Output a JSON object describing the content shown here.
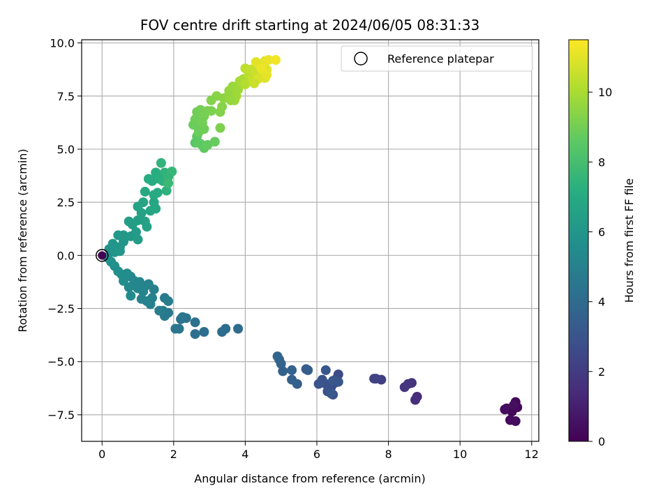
{
  "chart_data": {
    "type": "scatter",
    "title": "FOV centre drift starting at 2024/06/05 08:31:33",
    "xlabel": "Angular distance from reference (arcmin)",
    "ylabel": "Rotation from reference (arcmin)",
    "xlim": [
      -0.57,
      12.2
    ],
    "ylim": [
      -8.75,
      10.15
    ],
    "xticks": [
      0,
      2,
      4,
      6,
      8,
      10,
      12
    ],
    "xtick_labels": [
      "0",
      "2",
      "4",
      "6",
      "8",
      "10",
      "12"
    ],
    "yticks": [
      -7.5,
      -5.0,
      -2.5,
      0.0,
      2.5,
      5.0,
      7.5,
      10.0
    ],
    "ytick_labels": [
      "−7.5",
      "−5.0",
      "−2.5",
      "0.0",
      "2.5",
      "5.0",
      "7.5",
      "10.0"
    ],
    "grid": true,
    "legend": {
      "position": "top-right",
      "entries": [
        "Reference platepar"
      ]
    },
    "colorbar": {
      "label": "Hours from first FF file",
      "colormap": "viridis",
      "range": [
        0,
        11.5
      ],
      "ticks": [
        0,
        2,
        4,
        6,
        8,
        10
      ],
      "tick_labels": [
        "0",
        "2",
        "4",
        "6",
        "8",
        "10"
      ]
    },
    "reference_point": {
      "x": 0,
      "y": 0,
      "label": "Reference platepar"
    },
    "points": [
      [
        11.3,
        -7.2,
        0.1
      ],
      [
        11.45,
        -7.35,
        0.15
      ],
      [
        11.55,
        -6.9,
        0.2
      ],
      [
        11.6,
        -7.15,
        0.25
      ],
      [
        11.4,
        -7.75,
        0.3
      ],
      [
        11.55,
        -7.8,
        0.35
      ],
      [
        11.25,
        -7.25,
        0.4
      ],
      [
        11.5,
        -7.05,
        0.45
      ],
      [
        8.8,
        -6.65,
        1.4
      ],
      [
        8.75,
        -6.8,
        1.5
      ],
      [
        8.65,
        -6.0,
        1.6
      ],
      [
        8.55,
        -6.05,
        1.7
      ],
      [
        8.45,
        -6.2,
        1.8
      ],
      [
        7.8,
        -5.85,
        2.1
      ],
      [
        7.65,
        -5.8,
        2.2
      ],
      [
        7.6,
        -5.8,
        2.25
      ],
      [
        6.6,
        -5.6,
        2.6
      ],
      [
        6.55,
        -5.8,
        2.65
      ],
      [
        6.5,
        -6.0,
        2.7
      ],
      [
        6.4,
        -6.2,
        2.75
      ],
      [
        6.45,
        -6.55,
        2.8
      ],
      [
        6.3,
        -6.4,
        2.85
      ],
      [
        6.25,
        -6.05,
        2.9
      ],
      [
        6.15,
        -5.85,
        2.95
      ],
      [
        6.05,
        -6.05,
        3.0
      ],
      [
        6.25,
        -5.4,
        3.05
      ],
      [
        6.6,
        -5.95,
        3.1
      ],
      [
        6.45,
        -5.9,
        3.15
      ],
      [
        6.4,
        -6.5,
        3.2
      ],
      [
        5.7,
        -5.35,
        3.35
      ],
      [
        5.75,
        -5.4,
        3.4
      ],
      [
        5.45,
        -6.05,
        3.45
      ],
      [
        5.3,
        -5.85,
        3.5
      ],
      [
        5.05,
        -5.45,
        3.55
      ],
      [
        5.3,
        -5.4,
        3.6
      ],
      [
        5.0,
        -5.1,
        3.65
      ],
      [
        4.95,
        -4.9,
        3.7
      ],
      [
        4.9,
        -4.75,
        3.75
      ],
      [
        3.8,
        -3.45,
        4.0
      ],
      [
        3.45,
        -3.45,
        4.05
      ],
      [
        3.35,
        -3.6,
        4.1
      ],
      [
        2.85,
        -3.6,
        4.15
      ],
      [
        2.6,
        -3.7,
        4.2
      ],
      [
        2.6,
        -3.15,
        4.25
      ],
      [
        2.35,
        -2.95,
        4.3
      ],
      [
        2.2,
        -3.0,
        4.35
      ],
      [
        2.15,
        -3.45,
        4.4
      ],
      [
        2.05,
        -3.45,
        4.45
      ],
      [
        2.25,
        -2.9,
        4.5
      ],
      [
        1.85,
        -2.7,
        4.6
      ],
      [
        1.75,
        -2.85,
        4.65
      ],
      [
        1.7,
        -2.6,
        4.7
      ],
      [
        1.75,
        -2.0,
        4.75
      ],
      [
        1.85,
        -2.15,
        4.8
      ],
      [
        1.6,
        -2.6,
        4.85
      ],
      [
        1.45,
        -1.6,
        4.9
      ],
      [
        1.4,
        -2.0,
        4.95
      ],
      [
        1.35,
        -2.3,
        5.0
      ],
      [
        1.25,
        -2.15,
        5.05
      ],
      [
        1.1,
        -2.05,
        5.1
      ],
      [
        1.15,
        -1.7,
        5.15
      ],
      [
        1.0,
        -1.55,
        5.2
      ],
      [
        0.95,
        -1.4,
        5.25
      ],
      [
        0.9,
        -1.2,
        5.3
      ],
      [
        0.8,
        -1.0,
        5.35
      ],
      [
        0.75,
        -1.5,
        5.4
      ],
      [
        0.8,
        -1.9,
        5.45
      ],
      [
        0.7,
        -0.85,
        5.5
      ],
      [
        0.6,
        -1.2,
        5.55
      ],
      [
        0.55,
        -0.9,
        5.6
      ],
      [
        0.45,
        -0.75,
        5.65
      ],
      [
        0.35,
        -0.5,
        5.7
      ],
      [
        0.25,
        -0.3,
        5.75
      ],
      [
        0.15,
        -0.1,
        5.8
      ],
      [
        1.05,
        -1.25,
        5.25
      ],
      [
        1.2,
        -1.45,
        5.15
      ],
      [
        1.3,
        -1.35,
        5.1
      ],
      [
        0.2,
        0.3,
        5.85
      ],
      [
        0.35,
        0.15,
        5.9
      ],
      [
        0.5,
        0.4,
        5.95
      ],
      [
        0.6,
        0.65,
        6.0
      ],
      [
        0.45,
        0.95,
        6.05
      ],
      [
        0.6,
        0.95,
        6.1
      ],
      [
        0.5,
        0.2,
        6.05
      ],
      [
        0.3,
        0.55,
        6.0
      ],
      [
        0.8,
        0.9,
        6.2
      ],
      [
        0.95,
        1.1,
        6.25
      ],
      [
        1.0,
        0.75,
        6.3
      ],
      [
        0.85,
        1.45,
        6.35
      ],
      [
        0.75,
        1.6,
        6.4
      ],
      [
        1.0,
        1.65,
        6.45
      ],
      [
        1.2,
        1.6,
        6.5
      ],
      [
        1.25,
        1.35,
        6.55
      ],
      [
        1.1,
        2.0,
        6.6
      ],
      [
        1.0,
        2.3,
        6.65
      ],
      [
        1.15,
        2.5,
        6.7
      ],
      [
        1.35,
        2.1,
        6.75
      ],
      [
        1.45,
        2.5,
        6.8
      ],
      [
        1.5,
        2.2,
        6.85
      ],
      [
        1.2,
        3.0,
        6.9
      ],
      [
        1.45,
        2.85,
        6.95
      ],
      [
        1.55,
        2.95,
        7.0
      ],
      [
        1.4,
        3.5,
        7.05
      ],
      [
        1.3,
        3.6,
        7.1
      ],
      [
        1.5,
        3.9,
        7.15
      ],
      [
        1.6,
        3.6,
        7.2
      ],
      [
        1.7,
        3.5,
        7.3
      ],
      [
        1.8,
        3.05,
        7.35
      ],
      [
        1.75,
        3.9,
        7.4
      ],
      [
        1.65,
        4.35,
        7.45
      ],
      [
        1.85,
        3.7,
        7.5
      ],
      [
        1.95,
        3.95,
        7.6
      ],
      [
        1.85,
        3.4,
        7.7
      ],
      [
        2.6,
        5.3,
        8.5
      ],
      [
        2.65,
        5.6,
        8.55
      ],
      [
        2.75,
        5.25,
        8.6
      ],
      [
        2.85,
        5.05,
        8.65
      ],
      [
        2.95,
        5.2,
        8.7
      ],
      [
        3.15,
        5.35,
        8.75
      ],
      [
        2.7,
        5.95,
        8.8
      ],
      [
        2.55,
        6.15,
        8.85
      ],
      [
        2.6,
        6.4,
        8.9
      ],
      [
        2.65,
        6.75,
        8.95
      ],
      [
        2.75,
        6.85,
        9.0
      ],
      [
        2.85,
        6.55,
        9.05
      ],
      [
        2.95,
        6.8,
        9.1
      ],
      [
        3.05,
        6.8,
        9.15
      ],
      [
        3.3,
        6.0,
        9.2
      ],
      [
        2.7,
        5.8,
        8.85
      ],
      [
        2.85,
        5.95,
        8.9
      ],
      [
        2.8,
        6.25,
        9.0
      ],
      [
        3.3,
        6.75,
        9.3
      ],
      [
        3.35,
        7.0,
        9.35
      ],
      [
        3.4,
        7.4,
        9.45
      ],
      [
        3.5,
        7.45,
        9.55
      ],
      [
        3.55,
        7.75,
        9.6
      ],
      [
        3.65,
        7.95,
        9.7
      ],
      [
        3.7,
        7.3,
        9.75
      ],
      [
        3.8,
        7.8,
        9.8
      ],
      [
        3.85,
        8.2,
        9.9
      ],
      [
        3.95,
        8.3,
        10.0
      ],
      [
        3.75,
        7.5,
        9.8
      ],
      [
        3.6,
        7.3,
        9.65
      ],
      [
        3.2,
        7.5,
        9.4
      ],
      [
        3.05,
        7.3,
        9.3
      ],
      [
        4.0,
        8.05,
        10.2
      ],
      [
        4.1,
        8.5,
        10.3
      ],
      [
        4.0,
        8.8,
        10.35
      ],
      [
        4.15,
        8.75,
        10.45
      ],
      [
        4.2,
        8.3,
        10.5
      ],
      [
        4.3,
        8.6,
        10.6
      ],
      [
        4.4,
        8.95,
        10.7
      ],
      [
        4.5,
        8.6,
        10.8
      ],
      [
        4.35,
        8.3,
        10.85
      ],
      [
        4.55,
        8.35,
        10.9
      ],
      [
        4.6,
        8.75,
        10.95
      ],
      [
        4.55,
        9.15,
        11.05
      ],
      [
        4.65,
        9.2,
        11.15
      ],
      [
        4.85,
        9.2,
        11.3
      ],
      [
        4.3,
        9.1,
        11.0
      ],
      [
        4.45,
        8.8,
        11.2
      ],
      [
        4.25,
        8.1,
        10.6
      ],
      [
        4.6,
        8.5,
        11.1
      ]
    ]
  }
}
